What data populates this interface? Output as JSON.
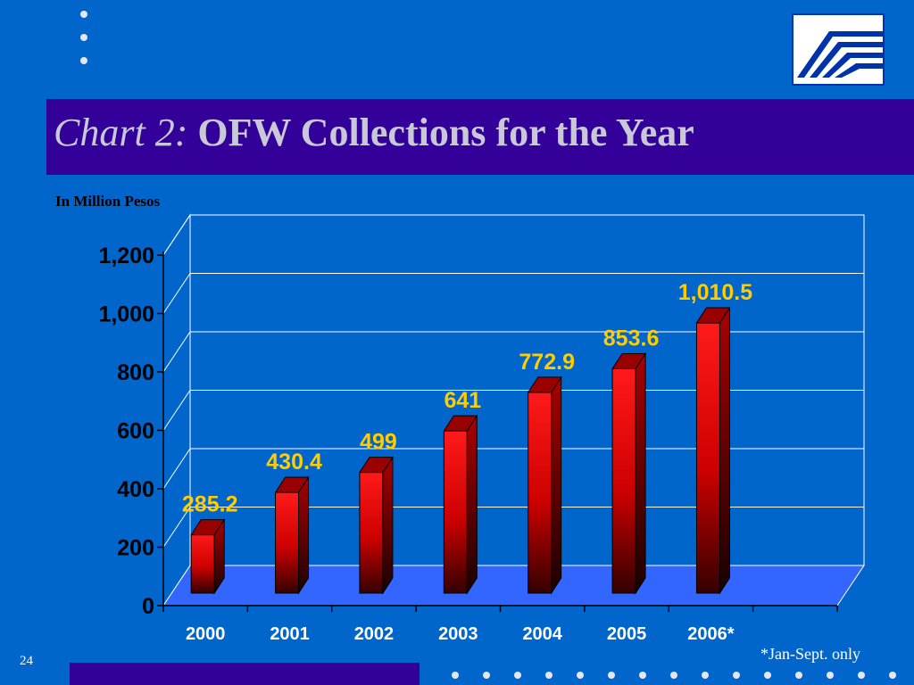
{
  "slide": {
    "title_prefix": "Chart 2:",
    "title_main": "OFW Collections for the Year",
    "unit_label": "In Million Pesos",
    "footnote": "*Jan-Sept. only",
    "page_number": "24"
  },
  "colors": {
    "background": "#0066cc",
    "title_band": "#330099",
    "bar": "#ee1111",
    "floor": "#3366ff",
    "data_label": "#ffcc00"
  },
  "chart_data": {
    "type": "bar",
    "categories": [
      "2000",
      "2001",
      "2002",
      "2003",
      "2004",
      "2005",
      "2006*"
    ],
    "values": [
      285.2,
      430.4,
      499,
      641,
      772.9,
      853.6,
      1010.5
    ],
    "data_labels": [
      "285.2",
      "430.4",
      "499",
      "641",
      "772.9",
      "853.6",
      "1,010.5"
    ],
    "y_ticks": [
      "0",
      "200",
      "400",
      "600",
      "800",
      "1,000",
      "1,200"
    ],
    "ylim": [
      0,
      1200
    ],
    "gridlines": true,
    "style": "3d-column"
  }
}
